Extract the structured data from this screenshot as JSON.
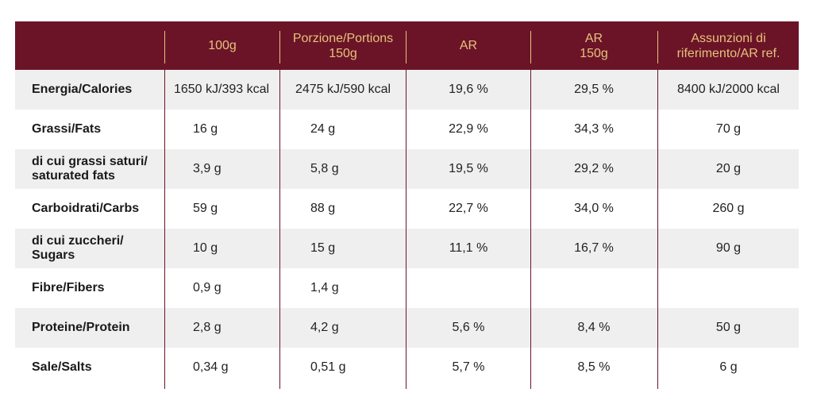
{
  "header": {
    "col0": "",
    "col1": "100g",
    "col2_line1": "Porzione/Portions",
    "col2_line2": "150g",
    "col3": "AR",
    "col4_line1": "AR",
    "col4_line2": "150g",
    "col5_line1": "Assunzioni di",
    "col5_line2": "riferimento/AR ref."
  },
  "rows": [
    {
      "label1": "Energia/Calories",
      "label2": "",
      "v100": "1650 kJ/393 kcal",
      "portion": "2475 kJ/590 kcal",
      "ar": "19,6 %",
      "ar150": "29,5 %",
      "ref": "8400 kJ/2000 kcal"
    },
    {
      "label1": "Grassi/Fats",
      "label2": "",
      "v100": "16 g",
      "portion": "24 g",
      "ar": "22,9 %",
      "ar150": "34,3 %",
      "ref": "70 g"
    },
    {
      "label1": "di cui grassi saturi/",
      "label2": "saturated fats",
      "v100": "3,9 g",
      "portion": "5,8 g",
      "ar": "19,5 %",
      "ar150": "29,2 %",
      "ref": "20 g"
    },
    {
      "label1": "Carboidrati/Carbs",
      "label2": "",
      "v100": "59 g",
      "portion": "88 g",
      "ar": "22,7 %",
      "ar150": "34,0 %",
      "ref": "260 g"
    },
    {
      "label1": "di cui zuccheri/",
      "label2": "Sugars",
      "v100": "10 g",
      "portion": "15 g",
      "ar": "11,1 %",
      "ar150": "16,7 %",
      "ref": "90 g"
    },
    {
      "label1": "Fibre/Fibers",
      "label2": "",
      "v100": "0,9 g",
      "portion": "1,4 g",
      "ar": "",
      "ar150": "",
      "ref": ""
    },
    {
      "label1": "Proteine/Protein",
      "label2": "",
      "v100": "2,8 g",
      "portion": "4,2 g",
      "ar": "5,6 %",
      "ar150": "8,4 %",
      "ref": "50 g"
    },
    {
      "label1": "Sale/Salts",
      "label2": "",
      "v100": "0,34 g",
      "portion": "0,51 g",
      "ar": "5,7 %",
      "ar150": "8,5 %",
      "ref": "6 g"
    }
  ],
  "colors": {
    "header_bg": "#6b1428",
    "header_text": "#e6c27a",
    "shaded_row": "#efefef"
  }
}
